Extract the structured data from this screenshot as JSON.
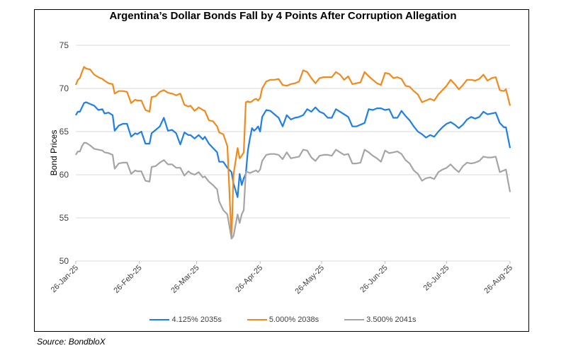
{
  "source": "Source: BondbloX",
  "chart_data": {
    "type": "line",
    "title": "Argentina’s Dollar Bonds Fall by 4 Points After Corruption Allegation",
    "xlabel": "",
    "ylabel": "Bond Prices",
    "ylim": [
      50,
      75
    ],
    "yticks": [
      50,
      55,
      60,
      65,
      70,
      75
    ],
    "grid": true,
    "legend_position": "bottom",
    "x_start": "26-Jan-25",
    "x_end": "26-Aug-25",
    "x_days_total": 212,
    "xticks": [
      {
        "label": "26-Jan-25",
        "day": 0
      },
      {
        "label": "26-Feb-25",
        "day": 31
      },
      {
        "label": "26-Mar-25",
        "day": 59
      },
      {
        "label": "26-Apr-25",
        "day": 90
      },
      {
        "label": "26-May-25",
        "day": 120
      },
      {
        "label": "26-Jun-25",
        "day": 151
      },
      {
        "label": "26-Jul-25",
        "day": 181
      },
      {
        "label": "26-Aug-25",
        "day": 212
      }
    ],
    "x_days": [
      0,
      1,
      2,
      3,
      4,
      5,
      7,
      9,
      11,
      13,
      14,
      16,
      18,
      19,
      21,
      23,
      25,
      27,
      29,
      30,
      32,
      34,
      36,
      37,
      39,
      41,
      43,
      45,
      47,
      49,
      51,
      53,
      55,
      56,
      58,
      60,
      62,
      63,
      65,
      67,
      69,
      70,
      72,
      74,
      76,
      77,
      79,
      80,
      81,
      82,
      83,
      84,
      85,
      86,
      87,
      88,
      89,
      90,
      91,
      93,
      95,
      97,
      99,
      101,
      103,
      105,
      107,
      109,
      111,
      113,
      115,
      117,
      119,
      121,
      123,
      125,
      127,
      129,
      131,
      133,
      135,
      137,
      139,
      141,
      143,
      145,
      147,
      149,
      151,
      153,
      155,
      157,
      159,
      161,
      163,
      165,
      167,
      169,
      171,
      173,
      175,
      177,
      179,
      181,
      183,
      185,
      187,
      189,
      191,
      193,
      195,
      197,
      199,
      201,
      203,
      205,
      207,
      209,
      210,
      212
    ],
    "series": [
      {
        "name": "4.125% 2035s",
        "color": "#1f7fe8",
        "values": [
          66.9,
          67.3,
          67.3,
          67.8,
          68.3,
          68.4,
          68.2,
          68.0,
          67.5,
          67.6,
          67.1,
          67.2,
          66.9,
          65.1,
          65.7,
          65.9,
          65.9,
          64.4,
          64.8,
          64.7,
          65.0,
          63.6,
          63.6,
          64.8,
          65.2,
          65.6,
          66.6,
          65.1,
          65.2,
          64.8,
          63.5,
          64.9,
          64.6,
          64.6,
          64.2,
          64.6,
          64.1,
          64.4,
          63.6,
          63.1,
          62.6,
          61.5,
          61.5,
          60.8,
          60.3,
          59.0,
          57.4,
          60.1,
          58.8,
          59.6,
          60.1,
          62.8,
          64.2,
          65.4,
          65.1,
          65.3,
          65.6,
          65.0,
          66.7,
          67.5,
          67.4,
          67.0,
          66.6,
          65.6,
          66.9,
          66.4,
          66.6,
          66.7,
          66.9,
          67.6,
          67.3,
          67.8,
          67.3,
          67.1,
          66.6,
          66.6,
          67.6,
          67.3,
          67.0,
          66.7,
          65.6,
          65.6,
          65.8,
          66.0,
          67.6,
          67.5,
          67.7,
          67.7,
          67.5,
          67.6,
          66.6,
          66.6,
          67.4,
          66.8,
          66.3,
          65.6,
          65.0,
          64.7,
          64.3,
          64.6,
          64.4,
          65.0,
          65.5,
          65.9,
          66.1,
          65.8,
          65.4,
          65.8,
          66.4,
          66.7,
          66.5,
          66.7,
          67.3,
          67.0,
          67.1,
          67.2,
          66.0,
          65.5,
          65.5,
          63.1
        ]
      },
      {
        "name": "5.000% 2038s",
        "color": "#f08a1c",
        "values": [
          70.4,
          71.0,
          71.2,
          71.9,
          72.5,
          72.3,
          72.2,
          71.6,
          71.3,
          71.1,
          70.9,
          70.6,
          70.5,
          69.4,
          69.7,
          69.7,
          69.6,
          68.3,
          68.7,
          68.6,
          68.6,
          67.5,
          67.3,
          69.0,
          69.1,
          69.6,
          69.8,
          69.5,
          69.4,
          69.2,
          69.4,
          68.1,
          67.9,
          68.0,
          67.4,
          67.8,
          67.5,
          67.4,
          66.3,
          66.2,
          65.6,
          64.9,
          64.7,
          63.3,
          52.6,
          60.0,
          63.1,
          61.9,
          62.2,
          62.6,
          68.4,
          68.5,
          68.4,
          68.5,
          68.7,
          68.8,
          68.6,
          68.9,
          70.0,
          70.8,
          71.0,
          71.0,
          71.1,
          70.4,
          70.3,
          70.5,
          70.6,
          70.8,
          72.1,
          71.9,
          71.2,
          70.6,
          71.2,
          71.3,
          71.3,
          71.3,
          71.9,
          71.6,
          71.0,
          71.4,
          70.5,
          70.6,
          70.7,
          71.9,
          71.4,
          71.0,
          70.6,
          70.4,
          71.8,
          71.7,
          71.2,
          71.3,
          71.1,
          70.3,
          70.2,
          69.7,
          69.3,
          68.4,
          68.6,
          68.8,
          68.6,
          69.3,
          69.8,
          70.3,
          71.0,
          70.5,
          69.9,
          70.4,
          71.0,
          71.0,
          70.9,
          71.1,
          71.6,
          70.9,
          71.2,
          71.3,
          69.8,
          69.7,
          69.9,
          68.0
        ]
      },
      {
        "name": "3.500% 2041s",
        "color": "#a5a5a5",
        "values": [
          62.3,
          62.7,
          62.7,
          63.3,
          63.7,
          63.7,
          63.4,
          63.0,
          62.9,
          62.8,
          62.6,
          62.5,
          62.3,
          60.7,
          61.3,
          61.4,
          61.4,
          60.1,
          60.5,
          60.4,
          60.4,
          59.3,
          59.2,
          60.9,
          61.0,
          61.4,
          61.7,
          61.2,
          61.2,
          60.8,
          60.8,
          59.9,
          60.4,
          60.2,
          60.0,
          60.3,
          59.7,
          59.8,
          59.2,
          58.8,
          58.3,
          56.9,
          55.9,
          55.4,
          52.6,
          52.9,
          55.4,
          54.4,
          55.4,
          55.9,
          60.3,
          60.3,
          60.2,
          60.3,
          60.4,
          60.5,
          60.3,
          60.6,
          61.6,
          62.3,
          62.4,
          62.4,
          62.3,
          61.8,
          62.6,
          61.9,
          62.0,
          62.1,
          62.9,
          62.8,
          62.0,
          61.6,
          62.2,
          62.3,
          62.3,
          62.2,
          62.9,
          62.6,
          62.3,
          62.4,
          61.3,
          61.3,
          61.4,
          62.9,
          62.6,
          62.2,
          61.9,
          61.5,
          62.8,
          62.5,
          62.6,
          62.7,
          62.4,
          61.7,
          61.3,
          60.5,
          60.1,
          59.3,
          59.6,
          59.7,
          59.5,
          60.3,
          60.6,
          60.8,
          61.2,
          60.7,
          60.3,
          61.0,
          61.4,
          61.3,
          61.4,
          61.6,
          62.1,
          62.0,
          62.0,
          62.1,
          60.3,
          60.5,
          60.6,
          58.0
        ]
      }
    ]
  }
}
